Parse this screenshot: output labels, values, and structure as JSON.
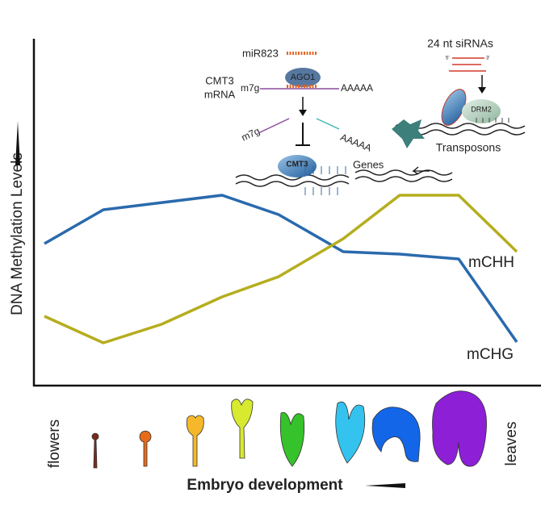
{
  "axes": {
    "y_label": "DNA Methylation Levels",
    "x_label": "Embryo development"
  },
  "x_ends": {
    "start": "flowers",
    "end": "leaves"
  },
  "series": [
    {
      "name": "mCHG",
      "color": "#2a6aad"
    },
    {
      "name": "mCHH",
      "color": "#b5ad1e"
    }
  ],
  "inset_cmt3": {
    "mirna": "miR823",
    "mrna_line1": "CMT3",
    "mrna_line2": "mRNA",
    "ago": "AGO1",
    "cap": "m7g",
    "tail": "AAAAA",
    "cleaved_cap": "m7g",
    "cleaved_tail": "AAAAA",
    "enzyme": "CMT3",
    "target": "Genes"
  },
  "inset_drm2": {
    "sirna": "24 nt siRNAs",
    "five_prime": "5'",
    "three_prime": "3'",
    "enzyme": "DRM2",
    "target": "Transposons"
  }
}
